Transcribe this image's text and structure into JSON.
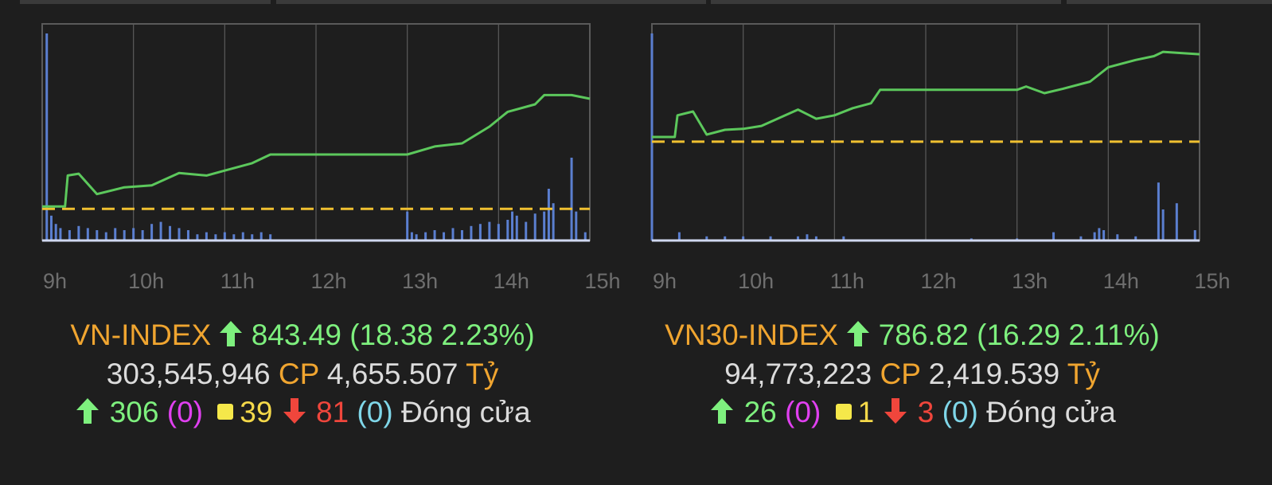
{
  "colors": {
    "index_line": "#5cc85c",
    "reference_line": "#f0c030",
    "volume_bars": "#5b7fd0",
    "grid": "#5a5a5a",
    "axis_baseline": "#d0d8f0"
  },
  "icons": {
    "up": "up-arrow-icon",
    "down": "down-arrow-icon",
    "unchanged": "yellow-square-icon"
  },
  "chart_data": [
    {
      "type": "line",
      "name": "VN-INDEX intraday",
      "x_ticks": [
        "9h",
        "10h",
        "11h",
        "12h",
        "13h",
        "14h",
        "15h"
      ],
      "x_unit": "hour",
      "xlim": [
        9,
        15
      ],
      "reference_value": 825.11,
      "ylim": [
        820,
        855
      ],
      "series": [
        {
          "kind": "line",
          "x": [
            9.0,
            9.25,
            9.28,
            9.4,
            9.6,
            9.9,
            10.2,
            10.5,
            10.8,
            11.0,
            11.3,
            11.5,
            12.0,
            12.5,
            13.0,
            13.3,
            13.6,
            13.9,
            14.1,
            14.4,
            14.5,
            14.8,
            15.0
          ],
          "y": [
            825.5,
            825.5,
            830.5,
            830.8,
            827.5,
            828.6,
            828.9,
            830.9,
            830.5,
            831.3,
            832.5,
            833.9,
            833.9,
            833.9,
            833.9,
            835.2,
            835.7,
            838.4,
            840.8,
            842.0,
            843.5,
            843.5,
            842.9
          ]
        },
        {
          "kind": "volume-bars",
          "x": [
            9.05,
            9.1,
            9.15,
            9.2,
            9.3,
            9.4,
            9.5,
            9.6,
            9.7,
            9.8,
            9.9,
            10.0,
            10.1,
            10.2,
            10.3,
            10.4,
            10.5,
            10.6,
            10.7,
            10.8,
            10.9,
            11.0,
            11.1,
            11.2,
            11.3,
            11.4,
            11.5,
            13.0,
            13.05,
            13.1,
            13.2,
            13.3,
            13.4,
            13.5,
            13.6,
            13.7,
            13.8,
            13.9,
            14.0,
            14.1,
            14.15,
            14.2,
            14.3,
            14.4,
            14.5,
            14.55,
            14.6,
            14.8,
            14.85,
            14.95
          ],
          "y": [
            100,
            12,
            8,
            6,
            5,
            7,
            6,
            5,
            4,
            6,
            5,
            6,
            5,
            8,
            9,
            7,
            6,
            5,
            3,
            4,
            3,
            4,
            3,
            4,
            3,
            4,
            3,
            14,
            4,
            3,
            4,
            5,
            4,
            6,
            5,
            7,
            8,
            9,
            8,
            10,
            14,
            12,
            9,
            13,
            14,
            25,
            18,
            40,
            14,
            4
          ]
        }
      ],
      "title": "VN-INDEX",
      "direction": "up",
      "value": "843.49",
      "change": "18.38",
      "change_pct": "2.23%",
      "volume": "303,545,946",
      "volume_unit": "CP",
      "turnover": "4,655.507",
      "turnover_unit": "Tỷ",
      "advancers": "306",
      "advancers_ceiling": "(0)",
      "unchanged": "39",
      "decliners": "81",
      "decliners_floor": "(0)",
      "status": "Đóng cửa"
    },
    {
      "type": "line",
      "name": "VN30-INDEX intraday",
      "x_ticks": [
        "9h",
        "10h",
        "11h",
        "12h",
        "13h",
        "14h",
        "15h"
      ],
      "x_unit": "hour",
      "xlim": [
        9,
        15
      ],
      "reference_value": 770.53,
      "ylim": [
        750,
        795
      ],
      "series": [
        {
          "kind": "line",
          "x": [
            9.0,
            9.25,
            9.28,
            9.45,
            9.6,
            9.8,
            10.0,
            10.2,
            10.4,
            10.6,
            10.8,
            11.0,
            11.2,
            11.4,
            11.5,
            12.0,
            12.5,
            13.0,
            13.1,
            13.3,
            13.5,
            13.8,
            14.0,
            14.3,
            14.5,
            14.6,
            15.0
          ],
          "y": [
            771.5,
            771.5,
            776.0,
            776.8,
            772.0,
            773.0,
            773.2,
            773.8,
            775.5,
            777.2,
            775.3,
            776.0,
            777.5,
            778.5,
            781.3,
            781.3,
            781.3,
            781.3,
            782.0,
            780.6,
            781.5,
            783.0,
            786.0,
            787.5,
            788.3,
            789.2,
            788.7
          ]
        },
        {
          "kind": "volume-bars",
          "x": [
            9.0,
            9.3,
            9.6,
            9.8,
            10.0,
            10.3,
            10.6,
            10.7,
            10.8,
            11.1,
            12.5,
            13.0,
            13.4,
            13.7,
            13.85,
            13.9,
            13.95,
            14.1,
            14.3,
            14.55,
            14.6,
            14.75,
            14.95
          ],
          "y": [
            100,
            4,
            2,
            2,
            2,
            2,
            2,
            3,
            2,
            2,
            1,
            1,
            4,
            2,
            4,
            6,
            5,
            3,
            2,
            28,
            15,
            18,
            5
          ]
        }
      ],
      "title": "VN30-INDEX",
      "direction": "up",
      "value": "786.82",
      "change": "16.29",
      "change_pct": "2.11%",
      "volume": "94,773,223",
      "volume_unit": "CP",
      "turnover": "2,419.539",
      "turnover_unit": "Tỷ",
      "advancers": "26",
      "advancers_ceiling": "(0)",
      "unchanged": "1",
      "decliners": "3",
      "decliners_floor": "(0)",
      "status": "Đóng cửa"
    }
  ]
}
